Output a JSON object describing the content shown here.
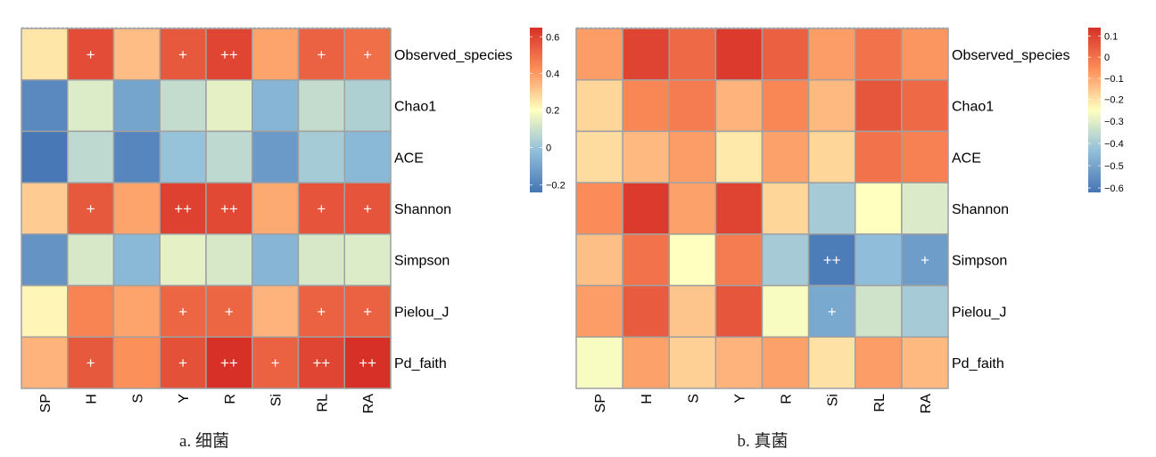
{
  "chart_data": [
    {
      "type": "heatmap",
      "title": "",
      "caption": "a. 细菌",
      "columns": [
        "SP",
        "H",
        "S",
        "Y",
        "R",
        "Si",
        "RL",
        "RA"
      ],
      "rows": [
        "Observed_species",
        "Chao1",
        "ACE",
        "Shannon",
        "Simpson",
        "Pielou_J",
        "Pd_faith"
      ],
      "values": [
        [
          0.25,
          0.58,
          0.33,
          0.55,
          0.6,
          0.38,
          0.53,
          0.5
        ],
        [
          -0.18,
          0.13,
          -0.1,
          0.08,
          0.15,
          -0.05,
          0.08,
          0.04
        ],
        [
          -0.23,
          0.07,
          -0.19,
          -0.01,
          0.07,
          -0.13,
          0.02,
          -0.04
        ],
        [
          0.3,
          0.55,
          0.38,
          0.61,
          0.59,
          0.37,
          0.56,
          0.56
        ],
        [
          -0.15,
          0.12,
          -0.04,
          0.15,
          0.12,
          -0.05,
          0.12,
          0.13
        ],
        [
          0.22,
          0.45,
          0.38,
          0.52,
          0.52,
          0.35,
          0.53,
          0.53
        ],
        [
          0.35,
          0.55,
          0.42,
          0.57,
          0.65,
          0.53,
          0.6,
          0.65
        ]
      ],
      "annotations": [
        [
          "",
          "+",
          "",
          "+",
          "++",
          "",
          "+",
          "+"
        ],
        [
          "",
          "",
          "",
          "",
          "",
          "",
          "",
          ""
        ],
        [
          "",
          "",
          "",
          "",
          "",
          "",
          "",
          ""
        ],
        [
          "",
          "+",
          "",
          "++",
          "++",
          "",
          "+",
          "+"
        ],
        [
          "",
          "",
          "",
          "",
          "",
          "",
          "",
          ""
        ],
        [
          "",
          "",
          "",
          "+",
          "+",
          "",
          "+",
          "+"
        ],
        [
          "",
          "+",
          "",
          "+",
          "++",
          "+",
          "++",
          "++"
        ]
      ],
      "colorbar": {
        "range": [
          -0.24,
          0.65
        ],
        "ticks": [
          0.6,
          0.4,
          0.2,
          0,
          -0.2
        ],
        "tick_labels": [
          "0.6",
          "0.4",
          "0.2",
          "0",
          "−0.2"
        ],
        "colors": [
          "#4575b4",
          "#91bfdb",
          "#ffffbf",
          "#fc8d59",
          "#d73027"
        ],
        "midpoint_value": 0.2
      }
    },
    {
      "type": "heatmap",
      "title": "",
      "caption": "b. 真菌",
      "columns": [
        "SP",
        "H",
        "S",
        "Y",
        "R",
        "Si",
        "RL",
        "RA"
      ],
      "rows": [
        "Observed_species",
        "Chao1",
        "ACE",
        "Shannon",
        "Simpson",
        "Pielou_J",
        "Pd_faith"
      ],
      "values": [
        [
          -0.08,
          0.1,
          0.02,
          0.12,
          0.04,
          -0.08,
          0.0,
          -0.07
        ],
        [
          -0.18,
          -0.04,
          -0.02,
          -0.12,
          -0.04,
          -0.13,
          0.06,
          0.02
        ],
        [
          -0.19,
          -0.13,
          -0.08,
          -0.21,
          -0.09,
          -0.18,
          0.0,
          -0.03
        ],
        [
          -0.05,
          0.12,
          -0.09,
          0.1,
          -0.18,
          -0.4,
          -0.25,
          -0.31
        ],
        [
          -0.14,
          0.0,
          -0.25,
          -0.02,
          -0.4,
          -0.6,
          -0.44,
          -0.52
        ],
        [
          -0.08,
          0.05,
          -0.15,
          0.06,
          -0.26,
          -0.49,
          -0.33,
          -0.4
        ],
        [
          -0.26,
          -0.09,
          -0.17,
          -0.12,
          -0.09,
          -0.2,
          -0.08,
          -0.13
        ]
      ],
      "annotations": [
        [
          "",
          "",
          "",
          "",
          "",
          "",
          "",
          ""
        ],
        [
          "",
          "",
          "",
          "",
          "",
          "",
          "",
          ""
        ],
        [
          "",
          "",
          "",
          "",
          "",
          "",
          "",
          ""
        ],
        [
          "",
          "",
          "",
          "",
          "",
          "",
          "",
          ""
        ],
        [
          "",
          "",
          "",
          "",
          "",
          "++",
          "",
          "+"
        ],
        [
          "",
          "",
          "",
          "",
          "",
          "+",
          "",
          ""
        ],
        [
          "",
          "",
          "",
          "",
          "",
          "",
          "",
          ""
        ]
      ],
      "colorbar": {
        "range": [
          -0.62,
          0.14
        ],
        "ticks": [
          0.1,
          0,
          -0.1,
          -0.2,
          -0.3,
          -0.4,
          -0.5,
          -0.6
        ],
        "tick_labels": [
          "0.1",
          "0",
          "−0.1",
          "−0.2",
          "−0.3",
          "−0.4",
          "−0.5",
          "−0.6"
        ],
        "colors": [
          "#4575b4",
          "#91bfdb",
          "#ffffbf",
          "#fc8d59",
          "#d73027"
        ],
        "midpoint_value": -0.25
      }
    }
  ]
}
